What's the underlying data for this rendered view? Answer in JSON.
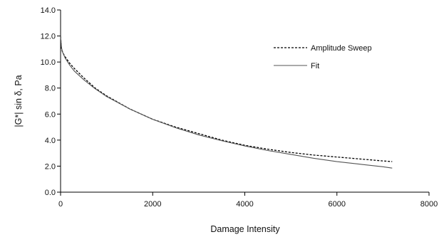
{
  "chart_data": {
    "type": "line",
    "title": "",
    "xlabel": "Damage Intensity",
    "ylabel": "|G*| sin δ, Pa",
    "xlim": [
      0,
      8000
    ],
    "ylim": [
      0.0,
      14.0
    ],
    "x_ticks": [
      "0",
      "2000",
      "4000",
      "6000",
      "8000"
    ],
    "y_ticks": [
      "0.0",
      "2.0",
      "4.0",
      "6.0",
      "8.0",
      "10.0",
      "12.0",
      "14.0"
    ],
    "grid": false,
    "legend_position": "top-right",
    "series": [
      {
        "name": "Amplitude Sweep",
        "style": "dashed",
        "color": "#000000",
        "x": [
          0,
          20,
          50,
          100,
          200,
          300,
          500,
          750,
          1000,
          1500,
          2000,
          2500,
          3000,
          3500,
          4000,
          4500,
          5000,
          5500,
          6000,
          6500,
          7000,
          7200
        ],
        "y": [
          12.0,
          11.0,
          10.7,
          10.4,
          9.9,
          9.5,
          8.8,
          8.0,
          7.4,
          6.4,
          5.6,
          5.0,
          4.5,
          4.0,
          3.6,
          3.3,
          3.05,
          2.85,
          2.7,
          2.55,
          2.4,
          2.35
        ]
      },
      {
        "name": "Fit",
        "style": "solid",
        "color": "#555555",
        "x": [
          0,
          20,
          50,
          100,
          200,
          300,
          500,
          750,
          1000,
          1500,
          2000,
          2500,
          3000,
          3500,
          4000,
          4500,
          5000,
          5500,
          6000,
          6500,
          7000,
          7200
        ],
        "y": [
          12.0,
          11.1,
          10.7,
          10.3,
          9.75,
          9.3,
          8.65,
          7.95,
          7.35,
          6.4,
          5.6,
          4.95,
          4.4,
          3.95,
          3.55,
          3.2,
          2.9,
          2.6,
          2.35,
          2.15,
          1.95,
          1.85
        ]
      }
    ]
  }
}
